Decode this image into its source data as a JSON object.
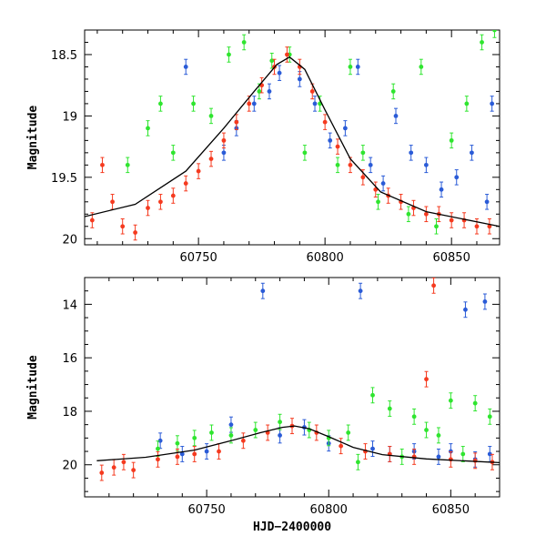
{
  "chart_data": [
    {
      "type": "scatter",
      "title": "",
      "xlabel": "",
      "ylabel": "Magnitude",
      "xlim": [
        60705,
        60869
      ],
      "ylim": [
        18.3,
        20.05
      ],
      "y_inverted": true,
      "grid": false,
      "x_ticks": [
        "60750",
        "60800",
        "60850"
      ],
      "y_ticks": [
        "18.5",
        "19",
        "19.5",
        "20"
      ],
      "series": [
        {
          "color": "#2a5bd7",
          "points": [
            [
              60745,
              18.6
            ],
            [
              60760,
              19.3
            ],
            [
              60765,
              19.1
            ],
            [
              60772,
              18.9
            ],
            [
              60778,
              18.8
            ],
            [
              60782,
              18.65
            ],
            [
              60790,
              18.7
            ],
            [
              60796,
              18.9
            ],
            [
              60802,
              19.2
            ],
            [
              60808,
              19.1
            ],
            [
              60813,
              18.6
            ],
            [
              60818,
              19.4
            ],
            [
              60823,
              19.55
            ],
            [
              60828,
              19.0
            ],
            [
              60834,
              19.3
            ],
            [
              60840,
              19.4
            ],
            [
              60846,
              19.6
            ],
            [
              60852,
              19.5
            ],
            [
              60858,
              19.3
            ],
            [
              60864,
              19.7
            ],
            [
              60866,
              18.9
            ]
          ]
        },
        {
          "color": "#2fe52f",
          "points": [
            [
              60722,
              19.4
            ],
            [
              60730,
              19.1
            ],
            [
              60735,
              18.9
            ],
            [
              60740,
              19.3
            ],
            [
              60748,
              18.9
            ],
            [
              60755,
              19.0
            ],
            [
              60762,
              18.5
            ],
            [
              60768,
              18.4
            ],
            [
              60774,
              18.8
            ],
            [
              60779,
              18.55
            ],
            [
              60786,
              18.5
            ],
            [
              60792,
              19.3
            ],
            [
              60798,
              18.9
            ],
            [
              60805,
              19.4
            ],
            [
              60810,
              18.6
            ],
            [
              60815,
              19.3
            ],
            [
              60821,
              19.7
            ],
            [
              60827,
              18.8
            ],
            [
              60833,
              19.8
            ],
            [
              60838,
              18.6
            ],
            [
              60844,
              19.9
            ],
            [
              60850,
              19.2
            ],
            [
              60856,
              18.9
            ],
            [
              60862,
              18.4
            ],
            [
              60867,
              18.3
            ]
          ]
        },
        {
          "color": "#f53a1f",
          "points": [
            [
              60708,
              19.85
            ],
            [
              60712,
              19.4
            ],
            [
              60716,
              19.7
            ],
            [
              60720,
              19.9
            ],
            [
              60725,
              19.95
            ],
            [
              60730,
              19.75
            ],
            [
              60735,
              19.7
            ],
            [
              60740,
              19.65
            ],
            [
              60745,
              19.55
            ],
            [
              60750,
              19.45
            ],
            [
              60755,
              19.35
            ],
            [
              60760,
              19.2
            ],
            [
              60765,
              19.05
            ],
            [
              60770,
              18.9
            ],
            [
              60775,
              18.75
            ],
            [
              60780,
              18.6
            ],
            [
              60785,
              18.5
            ],
            [
              60790,
              18.6
            ],
            [
              60795,
              18.8
            ],
            [
              60800,
              19.05
            ],
            [
              60805,
              19.25
            ],
            [
              60810,
              19.4
            ],
            [
              60815,
              19.5
            ],
            [
              60820,
              19.6
            ],
            [
              60825,
              19.65
            ],
            [
              60830,
              19.7
            ],
            [
              60835,
              19.75
            ],
            [
              60840,
              19.8
            ],
            [
              60845,
              19.8
            ],
            [
              60850,
              19.85
            ],
            [
              60855,
              19.85
            ],
            [
              60860,
              19.9
            ],
            [
              60865,
              19.9
            ]
          ]
        }
      ],
      "model_curve": [
        [
          60705,
          19.82
        ],
        [
          60725,
          19.72
        ],
        [
          60745,
          19.45
        ],
        [
          60760,
          19.1
        ],
        [
          60772,
          18.8
        ],
        [
          60781,
          18.58
        ],
        [
          60786,
          18.52
        ],
        [
          60792,
          18.62
        ],
        [
          60800,
          18.95
        ],
        [
          60810,
          19.35
        ],
        [
          60822,
          19.62
        ],
        [
          60840,
          19.78
        ],
        [
          60869,
          19.9
        ]
      ]
    },
    {
      "type": "scatter",
      "title": "",
      "xlabel": "HJD−2400000",
      "ylabel": "Magnitude",
      "xlim": [
        60700,
        60870
      ],
      "ylim": [
        13.0,
        21.2
      ],
      "y_inverted": true,
      "grid": false,
      "x_ticks": [
        "60750",
        "60800",
        "60850"
      ],
      "y_ticks": [
        "14",
        "16",
        "18",
        "20"
      ],
      "series": [
        {
          "color": "#2a5bd7",
          "points": [
            [
              60731,
              19.1
            ],
            [
              60740,
              19.6
            ],
            [
              60750,
              19.5
            ],
            [
              60760,
              18.5
            ],
            [
              60773,
              13.5
            ],
            [
              60780,
              18.9
            ],
            [
              60790,
              18.6
            ],
            [
              60800,
              19.2
            ],
            [
              60813,
              13.5
            ],
            [
              60818,
              19.4
            ],
            [
              60825,
              19.6
            ],
            [
              60835,
              19.5
            ],
            [
              60845,
              19.7
            ],
            [
              60850,
              19.5
            ],
            [
              60856,
              14.2
            ],
            [
              60860,
              19.8
            ],
            [
              60864,
              13.9
            ],
            [
              60866,
              19.6
            ]
          ]
        },
        {
          "color": "#2fe52f",
          "points": [
            [
              60730,
              19.4
            ],
            [
              60738,
              19.2
            ],
            [
              60745,
              19.0
            ],
            [
              60752,
              18.8
            ],
            [
              60760,
              18.9
            ],
            [
              60770,
              18.7
            ],
            [
              60780,
              18.4
            ],
            [
              60792,
              18.7
            ],
            [
              60800,
              19.0
            ],
            [
              60808,
              18.8
            ],
            [
              60812,
              19.9
            ],
            [
              60818,
              17.4
            ],
            [
              60825,
              17.9
            ],
            [
              60830,
              19.7
            ],
            [
              60835,
              18.2
            ],
            [
              60840,
              18.7
            ],
            [
              60845,
              18.9
            ],
            [
              60850,
              17.6
            ],
            [
              60855,
              19.6
            ],
            [
              60860,
              17.7
            ],
            [
              60866,
              18.2
            ]
          ]
        },
        {
          "color": "#f53a1f",
          "points": [
            [
              60707,
              20.3
            ],
            [
              60712,
              20.1
            ],
            [
              60716,
              19.9
            ],
            [
              60720,
              20.2
            ],
            [
              60730,
              19.8
            ],
            [
              60738,
              19.7
            ],
            [
              60745,
              19.6
            ],
            [
              60755,
              19.5
            ],
            [
              60765,
              19.1
            ],
            [
              60775,
              18.8
            ],
            [
              60785,
              18.55
            ],
            [
              60795,
              18.8
            ],
            [
              60805,
              19.3
            ],
            [
              60815,
              19.5
            ],
            [
              60825,
              19.6
            ],
            [
              60835,
              19.7
            ],
            [
              60840,
              16.8
            ],
            [
              60843,
              13.3
            ],
            [
              60850,
              19.8
            ],
            [
              60860,
              19.85
            ],
            [
              60867,
              19.9
            ]
          ]
        }
      ],
      "model_curve": [
        [
          60705,
          19.85
        ],
        [
          60725,
          19.72
        ],
        [
          60745,
          19.45
        ],
        [
          60760,
          19.1
        ],
        [
          60772,
          18.8
        ],
        [
          60781,
          18.6
        ],
        [
          60786,
          18.55
        ],
        [
          60792,
          18.65
        ],
        [
          60800,
          18.95
        ],
        [
          60810,
          19.35
        ],
        [
          60822,
          19.62
        ],
        [
          60840,
          19.78
        ],
        [
          60870,
          19.92
        ]
      ]
    }
  ]
}
